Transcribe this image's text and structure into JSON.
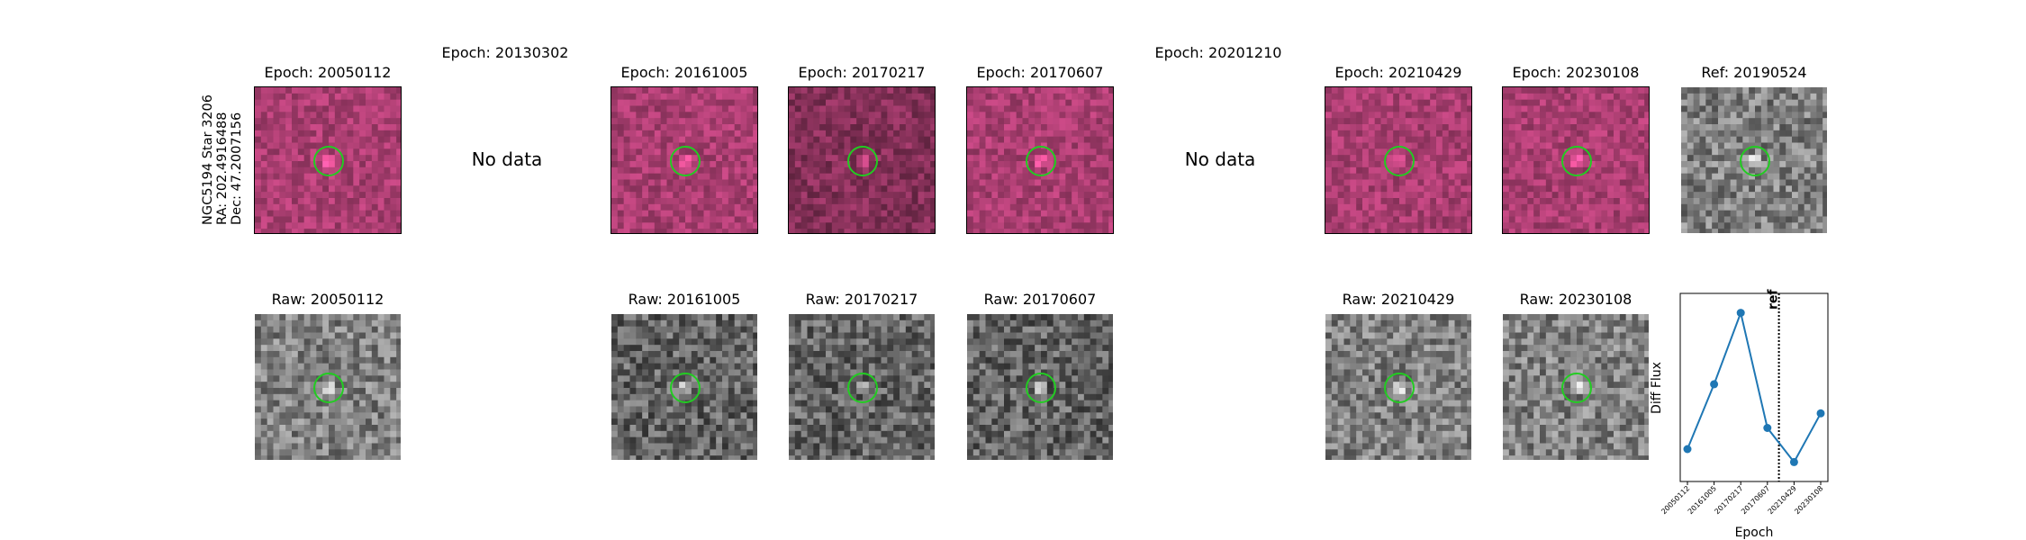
{
  "row_label": {
    "lines": [
      "NGC5194 Star 3206",
      "RA: 202.4916488",
      "Dec: 47.2007156"
    ]
  },
  "diff_titles": {
    "e1": "Epoch: 20050112",
    "e2": "Epoch: 20130302",
    "e3": "Epoch: 20161005",
    "e4": "Epoch: 20170217",
    "e5": "Epoch: 20170607",
    "e6": "Epoch: 20201210",
    "e7": "Epoch: 20210429",
    "e8": "Epoch: 20230108",
    "ref": "Ref: 20190524"
  },
  "raw_titles": {
    "e1": "Raw: 20050112",
    "e3": "Raw: 20161005",
    "e4": "Raw: 20170217",
    "e5": "Raw: 20170607",
    "e7": "Raw: 20210429",
    "e8": "Raw: 20230108"
  },
  "no_data_text": "No data",
  "colors": {
    "circle": "#22cc22",
    "line": "#1f77b4",
    "diff_base": "#b8437a",
    "raw_base": "#8c8c8c"
  },
  "chart_data": {
    "type": "line",
    "categories": [
      "20050112",
      "20161005",
      "20170217",
      "20170607",
      "20210429",
      "20230108"
    ],
    "values": [
      -1.0,
      1.0,
      3.2,
      -0.35,
      -1.4,
      0.1
    ],
    "ylim": [
      -2.0,
      3.8
    ],
    "ref_marker": {
      "label": "ref",
      "position": "between 20170607 and 20210429"
    },
    "xlabel": "Epoch",
    "ylabel": "Diff Flux",
    "grid": false
  }
}
